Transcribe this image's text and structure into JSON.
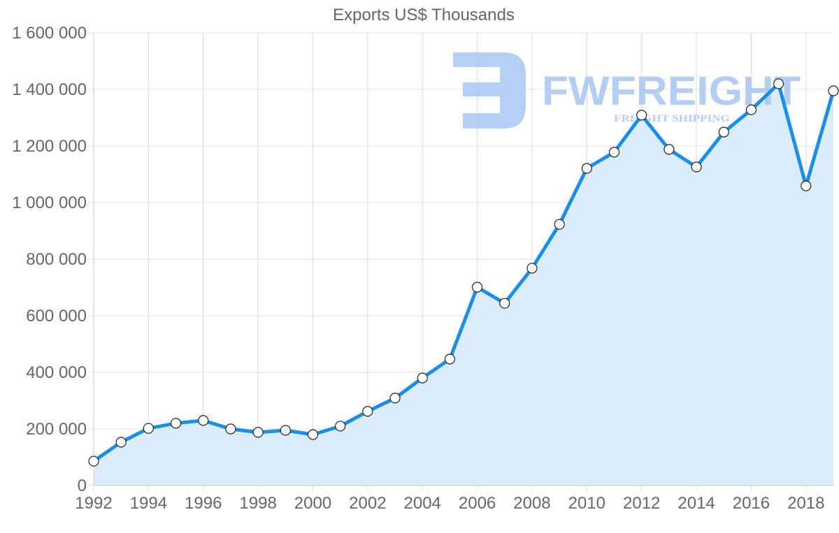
{
  "chart_data": {
    "type": "line",
    "title": "Exports US$ Thousands",
    "xlabel": "",
    "ylabel": "",
    "x": [
      1992,
      1993,
      1994,
      1995,
      1996,
      1997,
      1998,
      1999,
      2000,
      2001,
      2002,
      2003,
      2004,
      2005,
      2006,
      2007,
      2008,
      2009,
      2010,
      2011,
      2012,
      2013,
      2014,
      2015,
      2016,
      2017,
      2018,
      2019
    ],
    "series": [
      {
        "name": "Exports US$ Thousands",
        "values": [
          86000,
          153000,
          202000,
          220000,
          230000,
          200000,
          188000,
          195000,
          180000,
          210000,
          262000,
          309000,
          380000,
          447000,
          701000,
          644000,
          768000,
          923000,
          1121000,
          1178000,
          1309000,
          1188000,
          1126000,
          1249000,
          1328000,
          1420000,
          1059000,
          1395000
        ],
        "color": "#1a8fea",
        "fill": "#d9ecfd",
        "area": true,
        "markers": true
      }
    ],
    "ylim": [
      0,
      1600000
    ],
    "yticks": [
      "0",
      "200 000",
      "400 000",
      "600 000",
      "800 000",
      "1 000 000",
      "1 200 000",
      "1 400 000",
      "1 600 000"
    ],
    "xticks": [
      "1992",
      "1994",
      "1996",
      "1998",
      "2000",
      "2002",
      "2004",
      "2006",
      "2008",
      "2010",
      "2012",
      "2014",
      "2016",
      "2018"
    ],
    "grid": true,
    "legend": "none"
  },
  "watermark": {
    "brand": "FWFREIGHT",
    "tagline": "FREIGHT SHIPPING",
    "color": "#a8c6f2"
  }
}
